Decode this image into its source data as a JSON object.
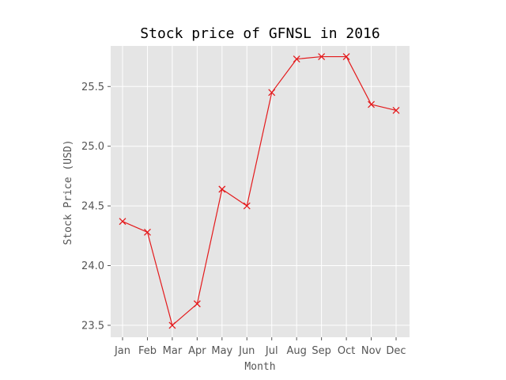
{
  "chart_data": {
    "type": "line",
    "title": "Stock price of GFNSL in 2016",
    "xlabel": "Month",
    "ylabel": "Stock Price (USD)",
    "categories": [
      "Jan",
      "Feb",
      "Mar",
      "Apr",
      "May",
      "Jun",
      "Jul",
      "Aug",
      "Sep",
      "Oct",
      "Nov",
      "Dec"
    ],
    "series": [
      {
        "values": [
          24.37,
          24.28,
          23.5,
          23.68,
          24.64,
          24.5,
          25.45,
          25.73,
          25.75,
          25.75,
          25.35,
          25.3
        ],
        "color": "#e41a1c",
        "marker": "x"
      }
    ],
    "yticks": [
      "23.5",
      "24.0",
      "24.5",
      "25.0",
      "25.5"
    ],
    "ylim": [
      23.4,
      25.84
    ],
    "grid": true,
    "style": {
      "plot_background": "#e5e5e5",
      "grid_color": "#ffffff"
    }
  }
}
